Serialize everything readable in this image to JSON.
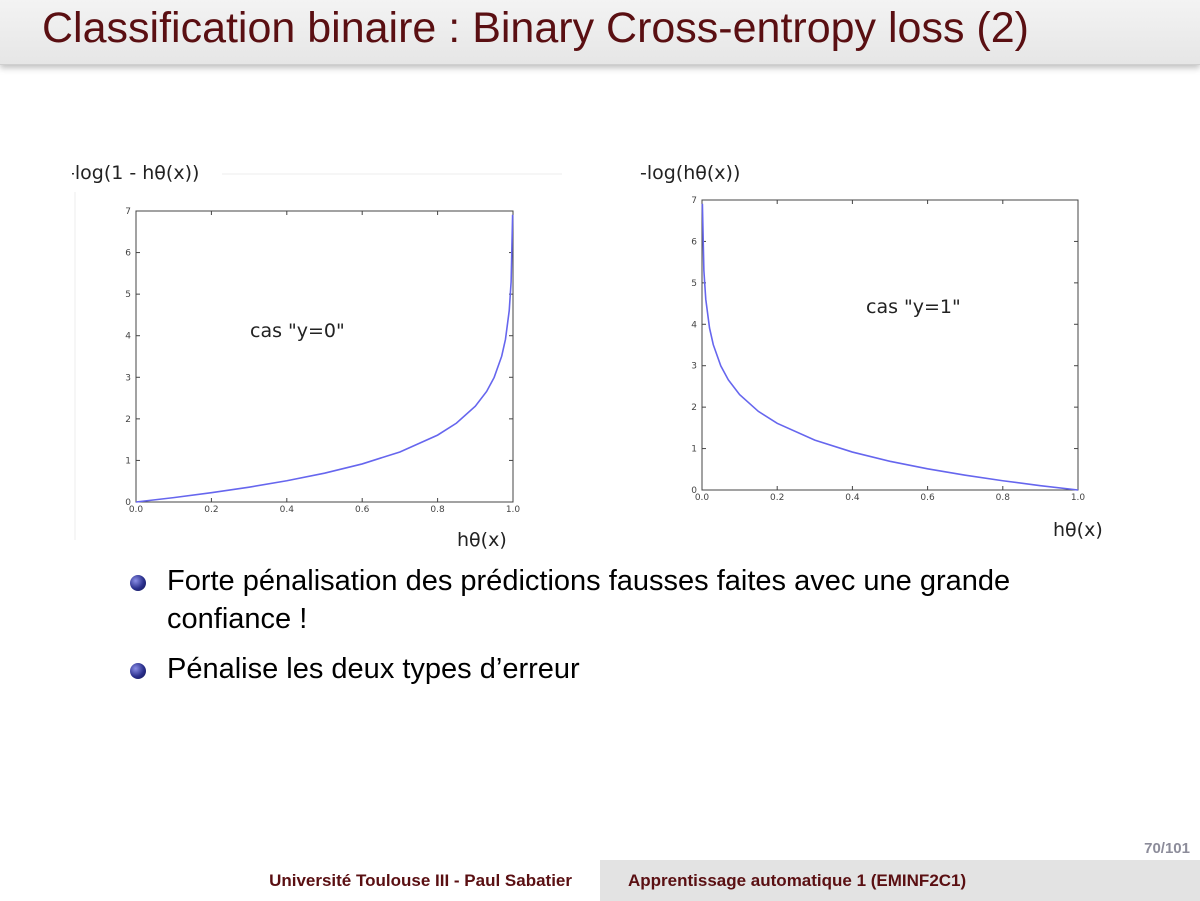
{
  "slide": {
    "title": "Classification binaire : Binary Cross-entropy loss (2)",
    "bullets": [
      "Forte pénalisation des prédictions fausses faites avec une grande confiance !",
      "Pénalise les deux types d’erreur"
    ],
    "page_number": "70/101"
  },
  "footer": {
    "left": "Université Toulouse III - Paul Sabatier",
    "right": "Apprentissage automatique 1 (EMINF2C1)"
  },
  "colors": {
    "title": "#5a0f12",
    "curve": "#6666ee",
    "footer_bg": "#e3e3e3"
  },
  "chart_data": [
    {
      "type": "line",
      "title": "-log(1 - hθ(x))",
      "xlabel": "hθ(x)",
      "ylabel": "",
      "annotation": "cas \"y=0\"",
      "xlim": [
        0,
        1
      ],
      "ylim": [
        0,
        7
      ],
      "xticks": [
        "0.0",
        "0.2",
        "0.4",
        "0.6",
        "0.8",
        "1.0"
      ],
      "yticks": [
        "0",
        "1",
        "2",
        "3",
        "4",
        "5",
        "6",
        "7"
      ],
      "grid": false,
      "series": [
        {
          "x": [
            0,
            0.1,
            0.2,
            0.3,
            0.4,
            0.5,
            0.6,
            0.7,
            0.8,
            0.85,
            0.9,
            0.93,
            0.95,
            0.97,
            0.98,
            0.99,
            0.995,
            0.999
          ],
          "y": [
            0,
            0.105,
            0.223,
            0.357,
            0.511,
            0.693,
            0.916,
            1.204,
            1.609,
            1.897,
            2.303,
            2.659,
            2.996,
            3.507,
            3.912,
            4.605,
            5.298,
            6.908
          ]
        }
      ]
    },
    {
      "type": "line",
      "title": "-log(hθ(x))",
      "xlabel": "hθ(x)",
      "ylabel": "",
      "annotation": "cas \"y=1\"",
      "xlim": [
        0,
        1
      ],
      "ylim": [
        0,
        7
      ],
      "xticks": [
        "0.0",
        "0.2",
        "0.4",
        "0.6",
        "0.8",
        "1.0"
      ],
      "yticks": [
        "0",
        "1",
        "2",
        "3",
        "4",
        "5",
        "6",
        "7"
      ],
      "grid": false,
      "series": [
        {
          "x": [
            0.001,
            0.005,
            0.01,
            0.02,
            0.03,
            0.05,
            0.07,
            0.1,
            0.15,
            0.2,
            0.3,
            0.4,
            0.5,
            0.6,
            0.7,
            0.8,
            0.9,
            1.0
          ],
          "y": [
            6.908,
            5.298,
            4.605,
            3.912,
            3.507,
            2.996,
            2.659,
            2.303,
            1.897,
            1.609,
            1.204,
            0.916,
            0.693,
            0.511,
            0.357,
            0.223,
            0.105,
            0
          ]
        }
      ]
    }
  ]
}
